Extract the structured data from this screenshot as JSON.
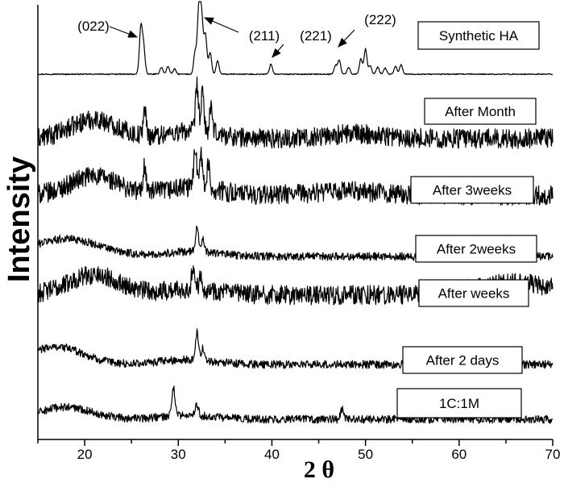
{
  "chart_data": {
    "type": "line",
    "title": "",
    "xlabel": "2 θ",
    "ylabel": "Intensity",
    "xlim": [
      15,
      70
    ],
    "x_ticks": [
      20,
      30,
      40,
      50,
      60,
      70
    ],
    "y_ticks_shown": false,
    "grid": false,
    "series": [
      {
        "name": "Synthetic HA",
        "baseline": 0.5,
        "noise": 0.12,
        "peaks": [
          [
            26.0,
            10.5
          ],
          [
            26.3,
            6
          ],
          [
            28.2,
            1.6
          ],
          [
            28.9,
            1.8
          ],
          [
            29.6,
            1.2
          ],
          [
            31.8,
            5
          ],
          [
            32.2,
            15
          ],
          [
            32.5,
            12.5
          ],
          [
            32.9,
            9
          ],
          [
            33.4,
            5
          ],
          [
            34.2,
            3
          ],
          [
            39.9,
            2.3
          ],
          [
            46.8,
            2.0
          ],
          [
            47.2,
            3.2
          ],
          [
            48.2,
            1.6
          ],
          [
            49.5,
            3.5
          ],
          [
            50.0,
            5.8
          ],
          [
            50.5,
            2
          ],
          [
            51.3,
            1.6
          ],
          [
            52.1,
            1.4
          ],
          [
            53.2,
            1.8
          ],
          [
            53.8,
            2.2
          ]
        ],
        "humps": []
      },
      {
        "name": "After Month",
        "baseline": 3.0,
        "noise": 1.3,
        "peaks": [
          [
            26.4,
            3.5
          ],
          [
            32.0,
            6
          ],
          [
            32.6,
            5
          ],
          [
            33.5,
            3
          ]
        ],
        "humps": [
          [
            21,
            2.5,
            3.5
          ],
          [
            31.5,
            1.0,
            4
          ],
          [
            49,
            0.6,
            5
          ]
        ]
      },
      {
        "name": "After 3weeks",
        "baseline": 3.0,
        "noise": 1.3,
        "peaks": [
          [
            26.4,
            3.5
          ],
          [
            31.8,
            5.5
          ],
          [
            32.4,
            5
          ],
          [
            33.2,
            3
          ]
        ],
        "humps": [
          [
            21,
            2.5,
            3.5
          ],
          [
            31.5,
            1.0,
            4
          ],
          [
            48,
            0.5,
            5
          ]
        ]
      },
      {
        "name": "After 2weeks",
        "baseline": 1.5,
        "noise": 0.5,
        "peaks": [
          [
            32.0,
            3.2
          ],
          [
            32.6,
            1.6
          ]
        ],
        "humps": [
          [
            18,
            2.2,
            5
          ],
          [
            31.5,
            0.6,
            4
          ]
        ]
      },
      {
        "name": "After weeks",
        "baseline": 3.0,
        "noise": 1.2,
        "peaks": [
          [
            31.6,
            3
          ],
          [
            32.4,
            2
          ]
        ],
        "humps": [
          [
            21,
            2.5,
            4
          ],
          [
            31.5,
            0.8,
            4
          ],
          [
            66,
            1.5,
            6
          ]
        ]
      },
      {
        "name": "After 2 days",
        "baseline": 1.5,
        "noise": 0.5,
        "peaks": [
          [
            32.0,
            3.5
          ],
          [
            32.6,
            1.5
          ]
        ],
        "humps": [
          [
            17,
            2.2,
            4
          ],
          [
            31,
            0.6,
            4
          ]
        ]
      },
      {
        "name": "1C:1M",
        "baseline": 1.5,
        "noise": 0.5,
        "peaks": [
          [
            29.5,
            3.5
          ],
          [
            32.0,
            1.4
          ],
          [
            47.5,
            1.2
          ]
        ],
        "humps": [
          [
            18,
            1.5,
            4
          ],
          [
            31,
            0.5,
            4
          ]
        ]
      }
    ],
    "annotations": [
      {
        "label": "(022)",
        "target_x": 26.0
      },
      {
        "label": "(211)",
        "target_x": 32.6
      },
      {
        "label": "(221)",
        "target_x": 40.0
      },
      {
        "label": "(222)",
        "target_x": 47.4
      }
    ]
  }
}
